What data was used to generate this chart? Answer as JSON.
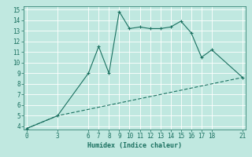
{
  "title": "",
  "xlabel": "Humidex (Indice chaleur)",
  "bg_color": "#c0e8e0",
  "grid_color": "#b0d8d0",
  "line_color": "#1a7060",
  "line1_x": [
    0,
    3,
    6,
    7,
    8,
    9,
    10,
    11,
    12,
    13,
    14,
    15,
    16,
    17,
    18,
    21
  ],
  "line1_y": [
    3.8,
    5.0,
    9.0,
    11.5,
    9.0,
    14.8,
    13.2,
    13.35,
    13.2,
    13.2,
    13.35,
    13.9,
    12.8,
    10.5,
    11.2,
    8.6
  ],
  "line2_x": [
    0,
    3,
    21
  ],
  "line2_y": [
    3.8,
    5.0,
    8.6
  ],
  "xlim": [
    -0.3,
    21.3
  ],
  "ylim": [
    3.7,
    15.3
  ],
  "yticks": [
    4,
    5,
    6,
    7,
    8,
    9,
    10,
    11,
    12,
    13,
    14,
    15
  ],
  "xticks": [
    0,
    3,
    6,
    7,
    8,
    9,
    10,
    11,
    12,
    13,
    14,
    15,
    16,
    17,
    18,
    21
  ]
}
